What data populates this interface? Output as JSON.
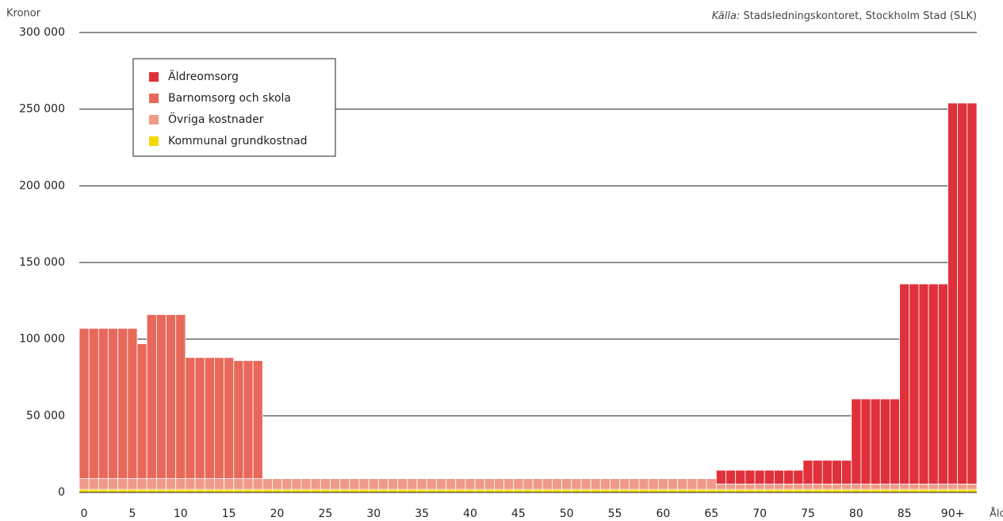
{
  "chart_data": {
    "type": "bar",
    "stacked": true,
    "y_axis_label": "Kronor",
    "x_axis_label": "Ålder",
    "source_label": "Källa:",
    "source": "Stadsledningskontoret, Stockholm Stad (SLK)",
    "categories": [
      "0",
      null,
      null,
      null,
      null,
      "5",
      null,
      null,
      null,
      null,
      "10",
      null,
      null,
      null,
      null,
      "15",
      null,
      null,
      null,
      null,
      "20",
      null,
      null,
      null,
      null,
      "25",
      null,
      null,
      null,
      null,
      "30",
      null,
      null,
      null,
      null,
      "35",
      null,
      null,
      null,
      null,
      "40",
      null,
      null,
      null,
      null,
      "45",
      null,
      null,
      null,
      null,
      "50",
      null,
      null,
      null,
      null,
      "55",
      null,
      null,
      null,
      null,
      "60",
      null,
      null,
      null,
      null,
      "65",
      null,
      null,
      null,
      null,
      "70",
      null,
      null,
      null,
      null,
      "75",
      null,
      null,
      null,
      null,
      "80",
      null,
      null,
      null,
      null,
      "85",
      null,
      null,
      null,
      null,
      "90+",
      null,
      null
    ],
    "series": [
      {
        "name": "Äldreomsorg",
        "color": "#e0303a",
        "values": [
          0,
          0,
          0,
          0,
          0,
          0,
          0,
          0,
          0,
          0,
          0,
          0,
          0,
          0,
          0,
          0,
          0,
          0,
          0,
          0,
          0,
          0,
          0,
          0,
          0,
          0,
          0,
          0,
          0,
          0,
          0,
          0,
          0,
          0,
          0,
          0,
          0,
          0,
          0,
          0,
          0,
          0,
          0,
          0,
          0,
          0,
          0,
          0,
          0,
          0,
          0,
          0,
          0,
          0,
          0,
          0,
          0,
          0,
          0,
          0,
          0,
          0,
          0,
          0,
          0,
          0,
          9000,
          9000,
          9000,
          9000,
          9000,
          9000,
          9000,
          9000,
          9000,
          15500,
          15500,
          15500,
          15500,
          15500,
          55500,
          55500,
          55500,
          55500,
          55500,
          130500,
          130500,
          130500,
          130500,
          130500,
          248500,
          248500,
          248500
        ]
      },
      {
        "name": "Barnomsorg  och skola",
        "color": "#e8685a",
        "values": [
          98000,
          98000,
          98000,
          98000,
          98000,
          98000,
          88000,
          107000,
          107000,
          107000,
          107000,
          79000,
          79000,
          79000,
          79000,
          79000,
          77000,
          77000,
          77000,
          0,
          0,
          0,
          0,
          0,
          0,
          0,
          0,
          0,
          0,
          0,
          0,
          0,
          0,
          0,
          0,
          0,
          0,
          0,
          0,
          0,
          0,
          0,
          0,
          0,
          0,
          0,
          0,
          0,
          0,
          0,
          0,
          0,
          0,
          0,
          0,
          0,
          0,
          0,
          0,
          0,
          0,
          0,
          0,
          0,
          0,
          0,
          0,
          0,
          0,
          0,
          0,
          0,
          0,
          0,
          0,
          0,
          0,
          0,
          0,
          0,
          0,
          0,
          0,
          0,
          0,
          0,
          0,
          0,
          0,
          0,
          0,
          0,
          0
        ]
      },
      {
        "name": "Övriga kostnader",
        "color": "#f09a8a",
        "values": [
          7000,
          7000,
          7000,
          7000,
          7000,
          7000,
          7000,
          7000,
          7000,
          7000,
          7000,
          7000,
          7000,
          7000,
          7000,
          7000,
          7000,
          7000,
          7000,
          7000,
          7000,
          7000,
          7000,
          7000,
          7000,
          7000,
          7000,
          7000,
          7000,
          7000,
          7000,
          7000,
          7000,
          7000,
          7000,
          7000,
          7000,
          7000,
          7000,
          7000,
          7000,
          7000,
          7000,
          7000,
          7000,
          7000,
          7000,
          7000,
          7000,
          7000,
          7000,
          7000,
          7000,
          7000,
          7000,
          7000,
          7000,
          7000,
          7000,
          7000,
          7000,
          7000,
          7000,
          7000,
          7000,
          7000,
          3500,
          3500,
          3500,
          3500,
          3500,
          3500,
          3500,
          3500,
          3500,
          3500,
          3500,
          3500,
          3500,
          3500,
          3500,
          3500,
          3500,
          3500,
          3500,
          3500,
          3500,
          3500,
          3500,
          3500,
          3500,
          3500,
          3500
        ]
      },
      {
        "name": "Kommunal grundkostnad",
        "color": "#f5d800",
        "values": [
          2000,
          2000,
          2000,
          2000,
          2000,
          2000,
          2000,
          2000,
          2000,
          2000,
          2000,
          2000,
          2000,
          2000,
          2000,
          2000,
          2000,
          2000,
          2000,
          2000,
          2000,
          2000,
          2000,
          2000,
          2000,
          2000,
          2000,
          2000,
          2000,
          2000,
          2000,
          2000,
          2000,
          2000,
          2000,
          2000,
          2000,
          2000,
          2000,
          2000,
          2000,
          2000,
          2000,
          2000,
          2000,
          2000,
          2000,
          2000,
          2000,
          2000,
          2000,
          2000,
          2000,
          2000,
          2000,
          2000,
          2000,
          2000,
          2000,
          2000,
          2000,
          2000,
          2000,
          2000,
          2000,
          2000,
          2000,
          2000,
          2000,
          2000,
          2000,
          2000,
          2000,
          2000,
          2000,
          2000,
          2000,
          2000,
          2000,
          2000,
          2000,
          2000,
          2000,
          2000,
          2000,
          2000,
          2000,
          2000,
          2000,
          2000,
          2000,
          2000,
          2000
        ]
      }
    ],
    "ylim": [
      0,
      300000
    ],
    "yticks": [
      0,
      {
        "value": 50000,
        "label": "50 000"
      },
      {
        "value": 100000,
        "label": "100 000"
      },
      {
        "value": 150000,
        "label": "150 000"
      },
      {
        "value": 200000,
        "label": "200 000"
      },
      {
        "value": 250000,
        "label": "250 000"
      },
      {
        "value": 300000,
        "label": "300 000"
      }
    ],
    "grid": true
  }
}
